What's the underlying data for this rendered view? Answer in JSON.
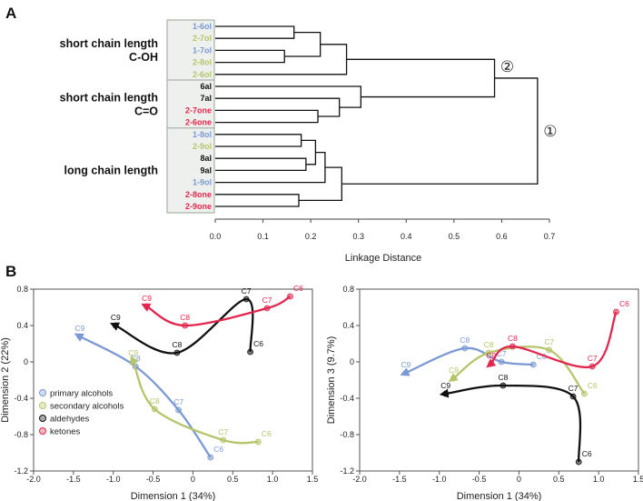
{
  "panels": {
    "a": "A",
    "b": "B"
  },
  "colors": {
    "primary": "#7b9ad3",
    "secondary": "#b6c46a",
    "aldehydes": "#111111",
    "ketones": "#e2264f"
  },
  "chart_data": [
    {
      "type": "dendrogram",
      "xlabel": "Linkage Distance",
      "xlim": [
        0.0,
        0.7
      ],
      "xticks": [
        "0.0",
        "0.1",
        "0.2",
        "0.3",
        "0.4",
        "0.5",
        "0.6",
        "0.7"
      ],
      "groups": [
        {
          "lines": [
            "short chain length",
            "C-OH"
          ]
        },
        {
          "lines": [
            "short chain length",
            "C=O"
          ]
        },
        {
          "lines": [
            "long chain length"
          ]
        }
      ],
      "leaves": [
        {
          "label": "1-6ol",
          "class": "primary"
        },
        {
          "label": "2-7ol",
          "class": "secondary"
        },
        {
          "label": "1-7ol",
          "class": "primary"
        },
        {
          "label": "2-8ol",
          "class": "secondary"
        },
        {
          "label": "2-6ol",
          "class": "secondary"
        },
        {
          "label": "6al",
          "class": "aldehydes"
        },
        {
          "label": "7al",
          "class": "aldehydes"
        },
        {
          "label": "2-7one",
          "class": "ketones"
        },
        {
          "label": "2-6one",
          "class": "ketones"
        },
        {
          "label": "1-8ol",
          "class": "primary"
        },
        {
          "label": "2-9ol",
          "class": "secondary"
        },
        {
          "label": "8al",
          "class": "aldehydes"
        },
        {
          "label": "9al",
          "class": "aldehydes"
        },
        {
          "label": "1-9ol",
          "class": "primary"
        },
        {
          "label": "2-8one",
          "class": "ketones"
        },
        {
          "label": "2-9one",
          "class": "ketones"
        }
      ],
      "merges": [
        {
          "left": 0,
          "right": 1,
          "height": 0.165
        },
        {
          "left": 2,
          "right": 3,
          "height": 0.145
        },
        {
          "left": 16,
          "right": 17,
          "height": 0.22
        },
        {
          "left": 18,
          "right": 4,
          "height": 0.275
        },
        {
          "left": 7,
          "right": 8,
          "height": 0.215
        },
        {
          "left": 20,
          "right": 6,
          "height": 0.26
        },
        {
          "left": 21,
          "right": 5,
          "height": 0.305
        },
        {
          "left": 19,
          "right": 22,
          "height": 0.585
        },
        {
          "left": 9,
          "right": 10,
          "height": 0.18
        },
        {
          "left": 11,
          "right": 12,
          "height": 0.19
        },
        {
          "left": 24,
          "right": 25,
          "height": 0.21
        },
        {
          "left": 26,
          "right": 13,
          "height": 0.23
        },
        {
          "left": 14,
          "right": 15,
          "height": 0.175
        },
        {
          "left": 27,
          "right": 28,
          "height": 0.265
        },
        {
          "left": 23,
          "right": 29,
          "height": 0.675
        }
      ],
      "annotations": [
        {
          "text": "②",
          "height": 0.585
        },
        {
          "text": "①",
          "height": 0.675
        }
      ]
    },
    {
      "type": "line",
      "xlabel": "Dimension 1 (34%)",
      "ylabel": "Dimension 2 (22%)",
      "xlim": [
        -2.0,
        1.5
      ],
      "ylim": [
        -1.2,
        0.8
      ],
      "xticks": [
        "-2.0",
        "-1.5",
        "-1.0",
        "-0.5",
        "0",
        "0.5",
        "1.0",
        "1.5"
      ],
      "yticks": [
        "0.8",
        "0.4",
        "0",
        "-0.4",
        "-0.8",
        "-1.2"
      ],
      "legend": {
        "position": "bottom-left",
        "entries": [
          {
            "label": "primary alcohols",
            "class": "primary"
          },
          {
            "label": "secondary alcohols",
            "class": "secondary"
          },
          {
            "label": "aldehydes",
            "class": "aldehydes"
          },
          {
            "label": "ketones",
            "class": "ketones"
          }
        ]
      },
      "series": [
        {
          "class": "primary",
          "points": [
            {
              "label": "C6",
              "x": 0.22,
              "y": -1.05
            },
            {
              "label": "C7",
              "x": -0.18,
              "y": -0.53
            },
            {
              "label": "C8",
              "x": -0.72,
              "y": -0.05
            },
            {
              "label": "C9",
              "x": -1.42,
              "y": 0.28
            }
          ]
        },
        {
          "class": "secondary",
          "points": [
            {
              "label": "C6",
              "x": 0.82,
              "y": -0.88
            },
            {
              "label": "C7",
              "x": 0.38,
              "y": -0.86
            },
            {
              "label": "C8",
              "x": -0.48,
              "y": -0.52
            },
            {
              "label": "C9",
              "x": -0.75,
              "y": 0.01
            }
          ]
        },
        {
          "class": "aldehydes",
          "points": [
            {
              "label": "C6",
              "x": 0.72,
              "y": 0.11
            },
            {
              "label": "C7",
              "x": 0.67,
              "y": 0.69
            },
            {
              "label": "C8",
              "x": -0.2,
              "y": 0.1
            },
            {
              "label": "C9",
              "x": -0.97,
              "y": 0.4
            }
          ]
        },
        {
          "class": "ketones",
          "points": [
            {
              "label": "C6",
              "x": 1.22,
              "y": 0.72
            },
            {
              "label": "C7",
              "x": 0.93,
              "y": 0.59
            },
            {
              "label": "C8",
              "x": -0.1,
              "y": 0.4
            },
            {
              "label": "C9",
              "x": -0.58,
              "y": 0.61
            }
          ]
        }
      ]
    },
    {
      "type": "line",
      "xlabel": "Dimension 1 (34%)",
      "ylabel": "Dimension 3 (9.7%)",
      "xlim": [
        -2.0,
        1.5
      ],
      "ylim": [
        -1.2,
        0.8
      ],
      "xticks": [
        "-2.0",
        "-1.5",
        "-1.0",
        "-0.5",
        "0",
        "0.5",
        "1.0",
        "1.5"
      ],
      "yticks": [
        "0.8",
        "0.4",
        "0",
        "-0.4",
        "-0.8",
        "-1.2"
      ],
      "series": [
        {
          "class": "primary",
          "points": [
            {
              "label": "C6",
              "x": 0.18,
              "y": -0.03
            },
            {
              "label": "C7",
              "x": -0.22,
              "y": 0.0
            },
            {
              "label": "C8",
              "x": -0.68,
              "y": 0.15
            },
            {
              "label": "C9",
              "x": -1.42,
              "y": -0.12
            }
          ]
        },
        {
          "class": "secondary",
          "points": [
            {
              "label": "C6",
              "x": 0.82,
              "y": -0.35
            },
            {
              "label": "C7",
              "x": 0.38,
              "y": 0.13
            },
            {
              "label": "C8",
              "x": -0.38,
              "y": 0.1
            },
            {
              "label": "C9",
              "x": -0.82,
              "y": -0.18
            }
          ]
        },
        {
          "class": "aldehydes",
          "points": [
            {
              "label": "C6",
              "x": 0.75,
              "y": -1.1
            },
            {
              "label": "C7",
              "x": 0.68,
              "y": -0.38
            },
            {
              "label": "C8",
              "x": -0.2,
              "y": -0.26
            },
            {
              "label": "C9",
              "x": -0.92,
              "y": -0.35
            }
          ]
        },
        {
          "class": "ketones",
          "points": [
            {
              "label": "C6",
              "x": 1.22,
              "y": 0.55
            },
            {
              "label": "C7",
              "x": 0.92,
              "y": -0.05
            },
            {
              "label": "C8",
              "x": -0.08,
              "y": 0.17
            },
            {
              "label": "C9",
              "x": -0.35,
              "y": -0.02
            }
          ]
        }
      ]
    }
  ]
}
